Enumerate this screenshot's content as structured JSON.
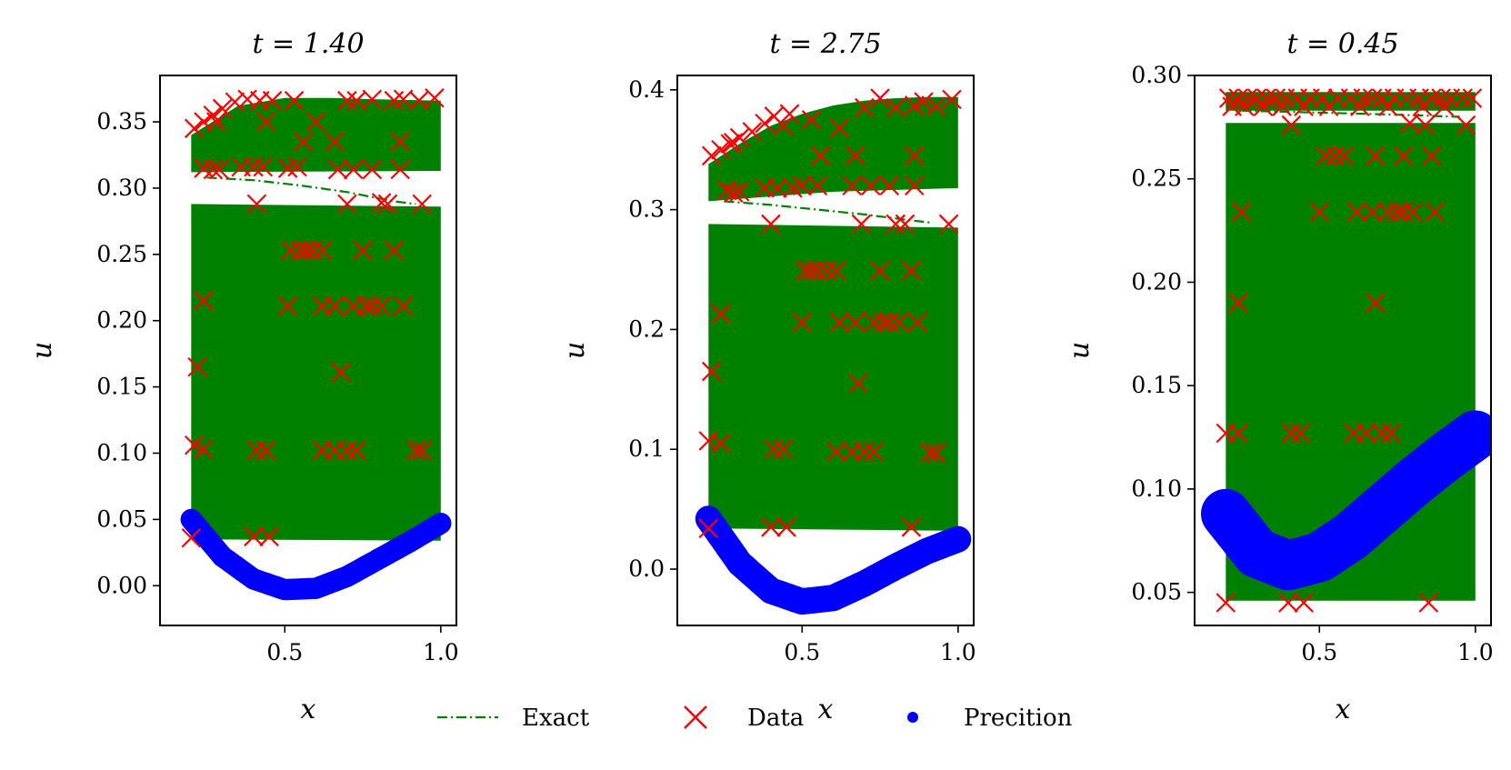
{
  "colors": {
    "exact": "#008000",
    "data": "#ff0000",
    "prediction": "#0000ff",
    "axis": "#000000",
    "background": "#ffffff"
  },
  "legend": {
    "placement": "bottom-center",
    "items": [
      {
        "label": "Exact",
        "marker": "dash-dot-line"
      },
      {
        "label": "Data",
        "marker": "x"
      },
      {
        "label": "Precition",
        "marker": "dot"
      }
    ]
  },
  "chart_data": [
    {
      "type": "scatter",
      "title": "t = 1.40",
      "xlabel": "x",
      "ylabel": "u",
      "xlim": [
        0.1,
        1.05
      ],
      "ylim": [
        -0.03,
        0.385
      ],
      "xticks": [
        0.5,
        1.0
      ],
      "xtick_labels": [
        "0.5",
        "1.0"
      ],
      "yticks": [
        0.0,
        0.05,
        0.1,
        0.15,
        0.2,
        0.25,
        0.3,
        0.35
      ],
      "ytick_labels": [
        "0.00",
        "0.05",
        "0.10",
        "0.15",
        "0.20",
        "0.25",
        "0.30",
        "0.35"
      ],
      "grid": false,
      "exact_bands": [
        {
          "x_top": [
            0.2,
            0.35,
            0.5,
            0.65,
            0.8,
            1.0
          ],
          "y_top": [
            0.34,
            0.362,
            0.368,
            0.368,
            0.367,
            0.366
          ],
          "x_bot": [
            0.2,
            1.0
          ],
          "y_bot": [
            0.312,
            0.313
          ]
        },
        {
          "x_top": [
            0.2,
            1.0
          ],
          "y_top": [
            0.288,
            0.286
          ],
          "x_bot": [
            0.2,
            1.0
          ],
          "y_bot": [
            0.035,
            0.034
          ]
        }
      ],
      "exact_line": {
        "x": [
          0.25,
          0.4,
          0.55,
          0.7,
          0.85,
          0.92
        ],
        "y": [
          0.308,
          0.306,
          0.302,
          0.297,
          0.29,
          0.288
        ]
      },
      "data_points": [
        [
          0.21,
          0.345
        ],
        [
          0.24,
          0.35
        ],
        [
          0.27,
          0.355
        ],
        [
          0.3,
          0.36
        ],
        [
          0.34,
          0.365
        ],
        [
          0.38,
          0.367
        ],
        [
          0.42,
          0.366
        ],
        [
          0.46,
          0.366
        ],
        [
          0.53,
          0.366
        ],
        [
          0.6,
          0.35
        ],
        [
          0.7,
          0.366
        ],
        [
          0.73,
          0.366
        ],
        [
          0.78,
          0.367
        ],
        [
          0.85,
          0.366
        ],
        [
          0.88,
          0.367
        ],
        [
          0.93,
          0.366
        ],
        [
          0.98,
          0.368
        ],
        [
          0.28,
          0.35
        ],
        [
          0.44,
          0.35
        ],
        [
          0.56,
          0.335
        ],
        [
          0.66,
          0.335
        ],
        [
          0.87,
          0.335
        ],
        [
          0.24,
          0.315
        ],
        [
          0.27,
          0.314
        ],
        [
          0.29,
          0.314
        ],
        [
          0.36,
          0.316
        ],
        [
          0.4,
          0.316
        ],
        [
          0.43,
          0.316
        ],
        [
          0.51,
          0.315
        ],
        [
          0.54,
          0.316
        ],
        [
          0.67,
          0.314
        ],
        [
          0.72,
          0.314
        ],
        [
          0.78,
          0.314
        ],
        [
          0.87,
          0.314
        ],
        [
          0.41,
          0.288
        ],
        [
          0.7,
          0.288
        ],
        [
          0.81,
          0.289
        ],
        [
          0.83,
          0.288
        ],
        [
          0.94,
          0.288
        ],
        [
          0.52,
          0.253
        ],
        [
          0.55,
          0.253
        ],
        [
          0.57,
          0.253
        ],
        [
          0.59,
          0.253
        ],
        [
          0.62,
          0.253
        ],
        [
          0.75,
          0.253
        ],
        [
          0.85,
          0.253
        ],
        [
          0.24,
          0.215
        ],
        [
          0.51,
          0.211
        ],
        [
          0.62,
          0.211
        ],
        [
          0.66,
          0.211
        ],
        [
          0.72,
          0.211
        ],
        [
          0.76,
          0.211
        ],
        [
          0.78,
          0.211
        ],
        [
          0.81,
          0.211
        ],
        [
          0.88,
          0.211
        ],
        [
          0.22,
          0.165
        ],
        [
          0.68,
          0.161
        ],
        [
          0.21,
          0.106
        ],
        [
          0.24,
          0.103
        ],
        [
          0.41,
          0.102
        ],
        [
          0.44,
          0.102
        ],
        [
          0.62,
          0.102
        ],
        [
          0.66,
          0.102
        ],
        [
          0.7,
          0.102
        ],
        [
          0.73,
          0.102
        ],
        [
          0.92,
          0.102
        ],
        [
          0.94,
          0.102
        ],
        [
          0.4,
          0.037
        ],
        [
          0.45,
          0.037
        ],
        [
          0.2,
          0.036
        ]
      ],
      "prediction_curve": {
        "x": [
          0.2,
          0.3,
          0.4,
          0.5,
          0.6,
          0.7,
          0.8,
          0.9,
          1.0
        ],
        "y": [
          0.05,
          0.022,
          0.005,
          -0.003,
          -0.002,
          0.007,
          0.02,
          0.033,
          0.047
        ],
        "band_half_width": 0.008
      }
    },
    {
      "type": "scatter",
      "title": "t = 2.75",
      "xlabel": "x",
      "ylabel": "u",
      "xlim": [
        0.1,
        1.05
      ],
      "ylim": [
        -0.047,
        0.412
      ],
      "xticks": [
        0.5,
        1.0
      ],
      "xtick_labels": [
        "0.5",
        "1.0"
      ],
      "yticks": [
        0.0,
        0.1,
        0.2,
        0.3,
        0.4
      ],
      "ytick_labels": [
        "0.0",
        "0.1",
        "0.2",
        "0.3",
        "0.4"
      ],
      "grid": false,
      "exact_bands": [
        {
          "x_top": [
            0.2,
            0.3,
            0.4,
            0.5,
            0.6,
            0.7,
            0.8,
            0.9,
            1.0
          ],
          "y_top": [
            0.338,
            0.355,
            0.37,
            0.38,
            0.387,
            0.391,
            0.393,
            0.394,
            0.394
          ],
          "x_bot": [
            0.2,
            0.6,
            1.0
          ],
          "y_bot": [
            0.307,
            0.315,
            0.318
          ]
        },
        {
          "x_top": [
            0.2,
            1.0
          ],
          "y_top": [
            0.288,
            0.285
          ],
          "x_bot": [
            0.2,
            1.0
          ],
          "y_bot": [
            0.034,
            0.032
          ]
        }
      ],
      "exact_line": {
        "x": [
          0.25,
          0.4,
          0.55,
          0.7,
          0.85,
          0.92
        ],
        "y": [
          0.307,
          0.304,
          0.3,
          0.296,
          0.291,
          0.289
        ]
      },
      "data_points": [
        [
          0.21,
          0.345
        ],
        [
          0.24,
          0.35
        ],
        [
          0.27,
          0.355
        ],
        [
          0.3,
          0.36
        ],
        [
          0.34,
          0.365
        ],
        [
          0.38,
          0.372
        ],
        [
          0.41,
          0.378
        ],
        [
          0.46,
          0.38
        ],
        [
          0.53,
          0.375
        ],
        [
          0.62,
          0.368
        ],
        [
          0.7,
          0.385
        ],
        [
          0.75,
          0.393
        ],
        [
          0.8,
          0.385
        ],
        [
          0.86,
          0.387
        ],
        [
          0.89,
          0.39
        ],
        [
          0.93,
          0.386
        ],
        [
          0.98,
          0.392
        ],
        [
          0.28,
          0.356
        ],
        [
          0.44,
          0.37
        ],
        [
          0.56,
          0.345
        ],
        [
          0.67,
          0.345
        ],
        [
          0.86,
          0.345
        ],
        [
          0.26,
          0.316
        ],
        [
          0.28,
          0.314
        ],
        [
          0.3,
          0.315
        ],
        [
          0.38,
          0.318
        ],
        [
          0.42,
          0.318
        ],
        [
          0.47,
          0.318
        ],
        [
          0.5,
          0.32
        ],
        [
          0.55,
          0.32
        ],
        [
          0.66,
          0.32
        ],
        [
          0.72,
          0.32
        ],
        [
          0.78,
          0.32
        ],
        [
          0.86,
          0.32
        ],
        [
          0.4,
          0.288
        ],
        [
          0.69,
          0.288
        ],
        [
          0.8,
          0.288
        ],
        [
          0.83,
          0.288
        ],
        [
          0.97,
          0.288
        ],
        [
          0.51,
          0.249
        ],
        [
          0.53,
          0.249
        ],
        [
          0.55,
          0.249
        ],
        [
          0.58,
          0.249
        ],
        [
          0.61,
          0.249
        ],
        [
          0.75,
          0.249
        ],
        [
          0.85,
          0.249
        ],
        [
          0.24,
          0.213
        ],
        [
          0.5,
          0.206
        ],
        [
          0.62,
          0.206
        ],
        [
          0.67,
          0.206
        ],
        [
          0.73,
          0.206
        ],
        [
          0.76,
          0.206
        ],
        [
          0.78,
          0.206
        ],
        [
          0.81,
          0.206
        ],
        [
          0.87,
          0.206
        ],
        [
          0.21,
          0.165
        ],
        [
          0.68,
          0.155
        ],
        [
          0.2,
          0.107
        ],
        [
          0.24,
          0.105
        ],
        [
          0.41,
          0.1
        ],
        [
          0.44,
          0.1
        ],
        [
          0.61,
          0.098
        ],
        [
          0.66,
          0.098
        ],
        [
          0.7,
          0.098
        ],
        [
          0.73,
          0.098
        ],
        [
          0.91,
          0.097
        ],
        [
          0.93,
          0.097
        ],
        [
          0.4,
          0.035
        ],
        [
          0.45,
          0.035
        ],
        [
          0.85,
          0.035
        ],
        [
          0.2,
          0.034
        ]
      ],
      "prediction_curve": {
        "x": [
          0.2,
          0.3,
          0.4,
          0.5,
          0.6,
          0.7,
          0.8,
          0.9,
          1.0
        ],
        "y": [
          0.042,
          0.005,
          -0.018,
          -0.027,
          -0.024,
          -0.012,
          0.002,
          0.015,
          0.025
        ],
        "band_half_width": 0.011
      }
    },
    {
      "type": "scatter",
      "title": "t = 0.45",
      "xlabel": "x",
      "ylabel": "u",
      "xlim": [
        0.1,
        1.05
      ],
      "ylim": [
        0.034,
        0.3
      ],
      "xticks": [
        0.5,
        1.0
      ],
      "xtick_labels": [
        "0.5",
        "1.0"
      ],
      "yticks": [
        0.05,
        0.1,
        0.15,
        0.2,
        0.25,
        0.3
      ],
      "ytick_labels": [
        "0.05",
        "0.10",
        "0.15",
        "0.20",
        "0.25",
        "0.30"
      ],
      "grid": false,
      "exact_bands": [
        {
          "x_top": [
            0.2,
            1.0
          ],
          "y_top": [
            0.292,
            0.292
          ],
          "x_bot": [
            0.2,
            1.0
          ],
          "y_bot": [
            0.283,
            0.283
          ]
        },
        {
          "x_top": [
            0.2,
            1.0
          ],
          "y_top": [
            0.277,
            0.277
          ],
          "x_bot": [
            0.2,
            1.0
          ],
          "y_bot": [
            0.046,
            0.046
          ]
        }
      ],
      "exact_line": {
        "x": [
          0.25,
          0.5,
          0.75,
          0.95
        ],
        "y": [
          0.283,
          0.282,
          0.281,
          0.28
        ]
      },
      "data_points": [
        [
          0.21,
          0.289
        ],
        [
          0.24,
          0.289
        ],
        [
          0.27,
          0.289
        ],
        [
          0.3,
          0.289
        ],
        [
          0.33,
          0.289
        ],
        [
          0.36,
          0.289
        ],
        [
          0.39,
          0.289
        ],
        [
          0.43,
          0.289
        ],
        [
          0.47,
          0.289
        ],
        [
          0.51,
          0.289
        ],
        [
          0.56,
          0.289
        ],
        [
          0.6,
          0.289
        ],
        [
          0.64,
          0.289
        ],
        [
          0.67,
          0.289
        ],
        [
          0.7,
          0.289
        ],
        [
          0.74,
          0.289
        ],
        [
          0.78,
          0.289
        ],
        [
          0.82,
          0.289
        ],
        [
          0.86,
          0.289
        ],
        [
          0.89,
          0.289
        ],
        [
          0.92,
          0.289
        ],
        [
          0.96,
          0.289
        ],
        [
          0.99,
          0.289
        ],
        [
          0.22,
          0.285
        ],
        [
          0.26,
          0.285
        ],
        [
          0.32,
          0.285
        ],
        [
          0.38,
          0.285
        ],
        [
          0.45,
          0.285
        ],
        [
          0.53,
          0.285
        ],
        [
          0.63,
          0.285
        ],
        [
          0.72,
          0.285
        ],
        [
          0.83,
          0.285
        ],
        [
          0.9,
          0.285
        ],
        [
          0.41,
          0.276
        ],
        [
          0.84,
          0.276
        ],
        [
          0.97,
          0.276
        ],
        [
          0.79,
          0.277
        ],
        [
          0.52,
          0.261
        ],
        [
          0.55,
          0.261
        ],
        [
          0.58,
          0.261
        ],
        [
          0.68,
          0.261
        ],
        [
          0.77,
          0.261
        ],
        [
          0.86,
          0.261
        ],
        [
          0.25,
          0.234
        ],
        [
          0.5,
          0.234
        ],
        [
          0.62,
          0.234
        ],
        [
          0.67,
          0.234
        ],
        [
          0.72,
          0.234
        ],
        [
          0.75,
          0.234
        ],
        [
          0.77,
          0.234
        ],
        [
          0.8,
          0.234
        ],
        [
          0.87,
          0.234
        ],
        [
          0.24,
          0.19
        ],
        [
          0.68,
          0.19
        ],
        [
          0.2,
          0.127
        ],
        [
          0.24,
          0.127
        ],
        [
          0.41,
          0.127
        ],
        [
          0.44,
          0.127
        ],
        [
          0.61,
          0.127
        ],
        [
          0.65,
          0.127
        ],
        [
          0.7,
          0.127
        ],
        [
          0.73,
          0.127
        ],
        [
          0.2,
          0.045
        ],
        [
          0.4,
          0.045
        ],
        [
          0.45,
          0.045
        ],
        [
          0.85,
          0.045
        ]
      ],
      "prediction_curve": {
        "x": [
          0.2,
          0.3,
          0.4,
          0.5,
          0.6,
          0.7,
          0.8,
          0.9,
          1.0
        ],
        "y": [
          0.088,
          0.069,
          0.063,
          0.067,
          0.077,
          0.09,
          0.103,
          0.115,
          0.126
        ],
        "band_half_width": 0.012
      }
    }
  ]
}
